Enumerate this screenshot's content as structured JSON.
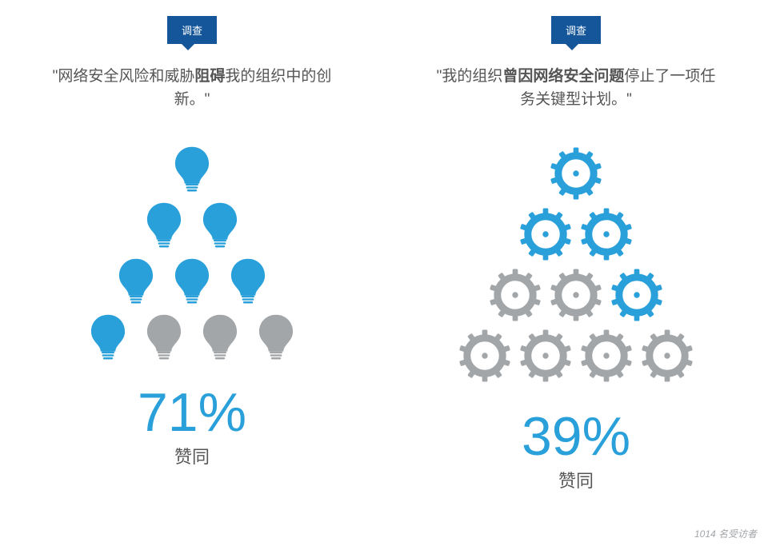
{
  "colors": {
    "accent": "#2aa0da",
    "grey": "#a3a6a9",
    "tag_bg": "#15569b",
    "quote_text": "#555555",
    "pct_text": "#2aa0da",
    "agree_text": "#555555",
    "footnote_text": "#a3a6a9",
    "bg": "#ffffff"
  },
  "footnote": "1014 名受访者",
  "footnote_fontsize": 12,
  "panels": [
    {
      "tag": "调查",
      "quote_parts": [
        {
          "t": "\"网络安全风险和威胁",
          "b": false
        },
        {
          "t": "阻碍",
          "b": true
        },
        {
          "t": "我的组织中的创新。\"",
          "b": false
        }
      ],
      "icon": "bulb",
      "icon_size": 62,
      "row_gap": 8,
      "col_gap": 8,
      "pyramid": [
        [
          "on"
        ],
        [
          "on",
          "on"
        ],
        [
          "on",
          "on",
          "on"
        ],
        [
          "on",
          "off",
          "off",
          "off"
        ]
      ],
      "percent": "71%",
      "percent_fontsize": 68,
      "agree": "赞同"
    },
    {
      "tag": "调查",
      "quote_parts": [
        {
          "t": "\"我的组织",
          "b": false
        },
        {
          "t": "曾因网络安全问题",
          "b": true
        },
        {
          "t": "停止了一项任务关键型计划。\"",
          "b": false
        }
      ],
      "icon": "gear",
      "icon_size": 74,
      "row_gap": 2,
      "col_gap": 2,
      "pyramid": [
        [
          "on"
        ],
        [
          "on",
          "on"
        ],
        [
          "off",
          "off",
          "on"
        ],
        [
          "off",
          "off",
          "off",
          "off"
        ]
      ],
      "percent": "39%",
      "percent_fontsize": 68,
      "agree": "赞同"
    }
  ]
}
